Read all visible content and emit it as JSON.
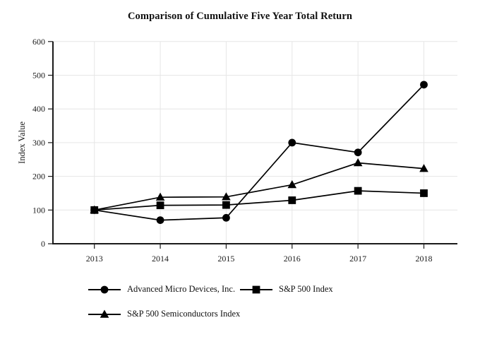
{
  "chart_data": {
    "type": "line",
    "title": "Comparison of Cumulative Five Year Total Return",
    "xlabel": "",
    "ylabel": "Index Value",
    "categories": [
      "2013",
      "2014",
      "2015",
      "2016",
      "2017",
      "2018"
    ],
    "ylim": [
      0,
      600
    ],
    "y_ticks": [
      0,
      100,
      200,
      300,
      400,
      500,
      600
    ],
    "grid": true,
    "legend_position": "bottom-left",
    "series": [
      {
        "name": "Advanced Micro Devices, Inc.",
        "marker": "circle",
        "values": [
          100,
          70,
          77,
          300,
          271,
          472
        ]
      },
      {
        "name": "S&P 500 Index",
        "marker": "square",
        "values": [
          100,
          114,
          115,
          129,
          157,
          150
        ]
      },
      {
        "name": "S&P 500 Semiconductors Index",
        "marker": "triangle",
        "values": [
          100,
          138,
          139,
          175,
          240,
          223
        ]
      }
    ],
    "colors": {
      "line": "#000000",
      "marker": "#000000",
      "grid": "#e6e6e6",
      "axis": "#1a1a1a",
      "text": "#1a1a1a",
      "background": "#ffffff"
    }
  }
}
